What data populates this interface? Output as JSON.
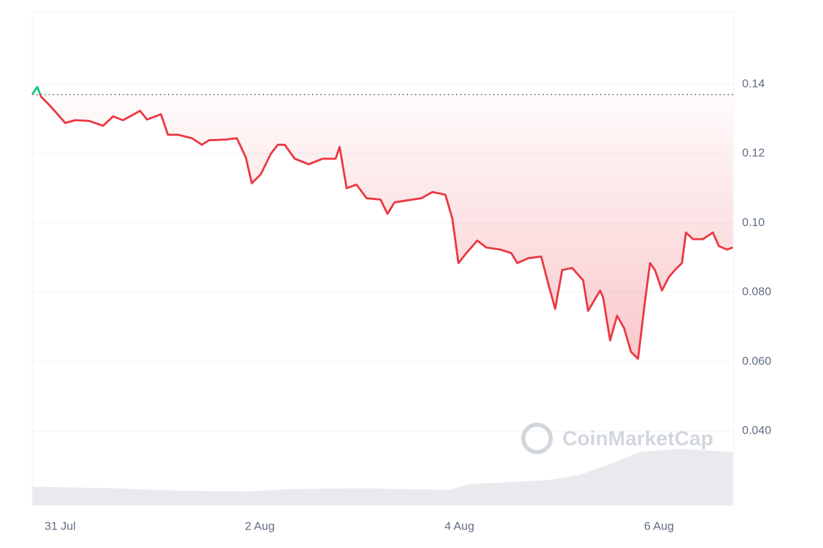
{
  "chart_data": {
    "type": "line",
    "watermark": "CoinMarketCap",
    "x": [
      -0.28,
      -0.23,
      -0.19,
      -0.12,
      -0.05,
      0.05,
      0.15,
      0.29,
      0.43,
      0.53,
      0.63,
      0.8,
      0.87,
      1.01,
      1.08,
      1.18,
      1.32,
      1.42,
      1.49,
      1.66,
      1.77,
      1.86,
      1.92,
      2.01,
      2.11,
      2.18,
      2.25,
      2.35,
      2.49,
      2.63,
      2.76,
      2.8,
      2.87,
      2.97,
      3.07,
      3.21,
      3.28,
      3.35,
      3.48,
      3.62,
      3.73,
      3.86,
      3.93,
      3.99,
      4.07,
      4.18,
      4.27,
      4.41,
      4.52,
      4.58,
      4.69,
      4.82,
      4.89,
      4.96,
      5.03,
      5.13,
      5.24,
      5.29,
      5.41,
      5.44,
      5.51,
      5.58,
      5.65,
      5.72,
      5.79,
      5.86,
      5.91,
      5.96,
      6.03,
      6.1,
      6.16,
      6.23,
      6.27,
      6.34,
      6.44,
      6.54,
      6.6,
      6.68,
      6.74
    ],
    "series": [
      {
        "color": "#ea3943",
        "color_above": "#16c784",
        "values": [
          0.137,
          0.1392,
          0.1363,
          0.1343,
          0.1321,
          0.1288,
          0.1296,
          0.1294,
          0.128,
          0.1307,
          0.1296,
          0.1323,
          0.1298,
          0.1313,
          0.1254,
          0.1254,
          0.1244,
          0.1225,
          0.1238,
          0.124,
          0.1244,
          0.1189,
          0.1114,
          0.114,
          0.1199,
          0.1225,
          0.1225,
          0.1185,
          0.1169,
          0.1185,
          0.1185,
          0.1219,
          0.11,
          0.111,
          0.1071,
          0.1067,
          0.1026,
          0.1059,
          0.1065,
          0.1071,
          0.1089,
          0.1081,
          0.1012,
          0.0884,
          0.0913,
          0.0949,
          0.0929,
          0.0923,
          0.0913,
          0.0884,
          0.0898,
          0.0903,
          0.0825,
          0.0752,
          0.0864,
          0.087,
          0.0834,
          0.0746,
          0.0805,
          0.0785,
          0.0661,
          0.0732,
          0.0697,
          0.0628,
          0.0608,
          0.0775,
          0.0884,
          0.0864,
          0.0805,
          0.0844,
          0.0864,
          0.0884,
          0.0972,
          0.0953,
          0.0953,
          0.0972,
          0.0933,
          0.0923,
          0.0929
        ]
      }
    ],
    "baseline": 0.137,
    "volume": {
      "color": "#e8eaee",
      "x": [
        -0.28,
        0.5,
        1.2,
        1.9,
        2.3,
        3.0,
        3.9,
        4.1,
        4.9,
        5.2,
        5.5,
        5.8,
        6.2,
        6.74
      ],
      "values": [
        23,
        21,
        18,
        17,
        20,
        21,
        19,
        26,
        31,
        37,
        50,
        65,
        69,
        65
      ],
      "ylim": [
        0,
        100
      ]
    },
    "xlim": [
      -0.28,
      6.75
    ],
    "xticks": [
      {
        "value": 0,
        "label": "31 Jul"
      },
      {
        "value": 2,
        "label": "2 Aug"
      },
      {
        "value": 4,
        "label": "4 Aug"
      },
      {
        "value": 6,
        "label": "6 Aug"
      }
    ],
    "ylim": [
      0.0185,
      0.1607
    ],
    "yticks": [
      {
        "value": 0.04,
        "label": "0.040"
      },
      {
        "value": 0.06,
        "label": "0.060"
      },
      {
        "value": 0.08,
        "label": "0.080"
      },
      {
        "value": 0.1,
        "label": "0.10"
      },
      0.12,
      0.14
    ],
    "grid": true
  }
}
